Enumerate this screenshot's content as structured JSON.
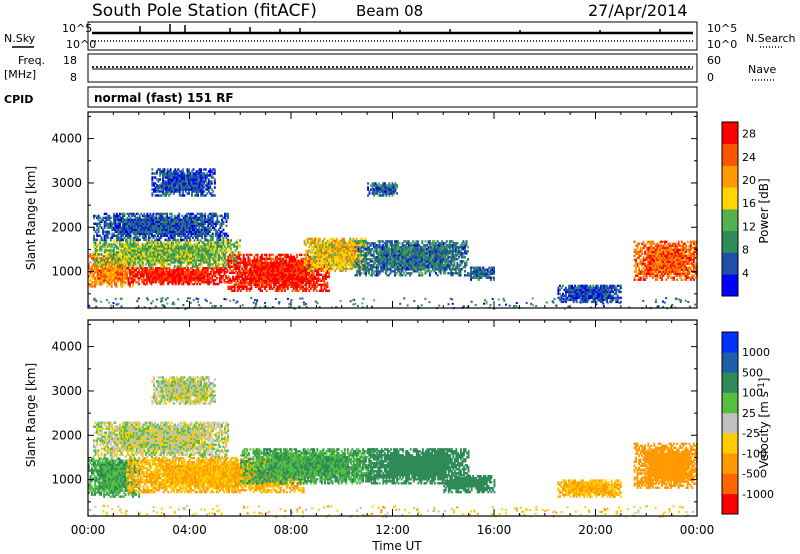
{
  "header": {
    "station": "South Pole Station (fitACF)",
    "beam": "Beam 08",
    "date": "27/Apr/2014"
  },
  "params": {
    "nsky_label": "N.Sky",
    "nsearch_label": "N.Search",
    "freq_label_1": "Freq.",
    "freq_label_2": "[MHz]",
    "nave_label": "Nave",
    "cpid_label": "CPID",
    "cpid_value": "normal (fast) 151 RF",
    "noise_left_ticks": [
      "10^5",
      "10^0"
    ],
    "noise_right_ticks": [
      "10^5",
      "10^0"
    ],
    "freq_left_ticks": [
      "18",
      "8"
    ],
    "nave_right_ticks": [
      "60",
      "0"
    ]
  },
  "colors": {
    "power_scale": [
      "#0000ff",
      "#1f4fa8",
      "#2e8b57",
      "#55b050",
      "#ffd700",
      "#ff9900",
      "#ff5500",
      "#ff0000"
    ],
    "velocity_scale": [
      "#0033ff",
      "#1f5fa8",
      "#2e8b57",
      "#55c040",
      "#c0c0c0",
      "#ffcc00",
      "#ff9900",
      "#ff6600",
      "#ff0000"
    ]
  },
  "chart_data": [
    {
      "type": "heatmap",
      "panel": "power",
      "ylabel": "Slant Range [km]",
      "xlabel": "",
      "x_ticks": [
        "00:00",
        "04:00",
        "08:00",
        "12:00",
        "16:00",
        "20:00",
        "00:00"
      ],
      "xlim_hours": [
        0,
        24
      ],
      "ylim_km": [
        180,
        4600
      ],
      "y_ticks": [
        "1000",
        "2000",
        "3000",
        "4000"
      ],
      "colorbar_label": "Power [dB]",
      "colorbar_ticks": [
        "4",
        "8",
        "12",
        "16",
        "20",
        "24",
        "28"
      ],
      "colorbar_range": [
        0,
        30
      ],
      "regions": [
        {
          "t0": 0.0,
          "t1": 1.8,
          "r0": 650,
          "r1": 1400,
          "v": 22
        },
        {
          "t0": 1.5,
          "t1": 5.5,
          "r0": 700,
          "r1": 1100,
          "v": 28
        },
        {
          "t0": 0.2,
          "t1": 6.0,
          "r0": 1100,
          "r1": 1700,
          "v": 13
        },
        {
          "t0": 5.5,
          "t1": 9.5,
          "r0": 550,
          "r1": 1400,
          "v": 28
        },
        {
          "t0": 8.5,
          "t1": 11.0,
          "r0": 1000,
          "r1": 1750,
          "v": 18
        },
        {
          "t0": 10.5,
          "t1": 15.0,
          "r0": 900,
          "r1": 1700,
          "v": 8
        },
        {
          "t0": 0.2,
          "t1": 5.5,
          "r0": 1700,
          "r1": 2300,
          "v": 6
        },
        {
          "t0": 2.5,
          "t1": 5.0,
          "r0": 2700,
          "r1": 3300,
          "v": 5
        },
        {
          "t0": 11.0,
          "t1": 12.2,
          "r0": 2700,
          "r1": 3000,
          "v": 7
        },
        {
          "t0": 21.5,
          "t1": 24.0,
          "r0": 800,
          "r1": 1700,
          "v": 24
        },
        {
          "t0": 15.0,
          "t1": 16.0,
          "r0": 800,
          "r1": 1100,
          "v": 7
        },
        {
          "t0": 18.5,
          "t1": 21.0,
          "r0": 300,
          "r1": 700,
          "v": 5
        }
      ]
    },
    {
      "type": "heatmap",
      "panel": "velocity",
      "ylabel": "Slant Range [km]",
      "xlabel": "Time UT",
      "x_ticks": [
        "00:00",
        "04:00",
        "08:00",
        "12:00",
        "16:00",
        "20:00",
        "00:00"
      ],
      "xlim_hours": [
        0,
        24
      ],
      "ylim_km": [
        180,
        4600
      ],
      "y_ticks": [
        "1000",
        "2000",
        "3000",
        "4000"
      ],
      "colorbar_label": "Velocity [m s^-1]",
      "colorbar_ticks": [
        "1000",
        "500",
        "100",
        "25",
        "-25",
        "-100",
        "-500",
        "-1000"
      ],
      "regions": [
        {
          "t0": 0.0,
          "t1": 2.0,
          "r0": 600,
          "r1": 1500,
          "v": 100
        },
        {
          "t0": 1.5,
          "t1": 8.5,
          "r0": 700,
          "r1": 1500,
          "v": -100
        },
        {
          "t0": 6.0,
          "t1": 11.5,
          "r0": 900,
          "r1": 1700,
          "v": 100
        },
        {
          "t0": 0.2,
          "t1": 5.5,
          "r0": 1500,
          "r1": 2300,
          "v": 0
        },
        {
          "t0": 11.0,
          "t1": 15.0,
          "r0": 900,
          "r1": 1700,
          "v": 300
        },
        {
          "t0": 14.0,
          "t1": 16.0,
          "r0": 700,
          "r1": 1100,
          "v": 300
        },
        {
          "t0": 2.5,
          "t1": 5.0,
          "r0": 2700,
          "r1": 3300,
          "v": 0
        },
        {
          "t0": 18.5,
          "t1": 21.0,
          "r0": 600,
          "r1": 1000,
          "v": -100
        },
        {
          "t0": 21.5,
          "t1": 24.0,
          "r0": 800,
          "r1": 1800,
          "v": -200
        }
      ]
    }
  ]
}
